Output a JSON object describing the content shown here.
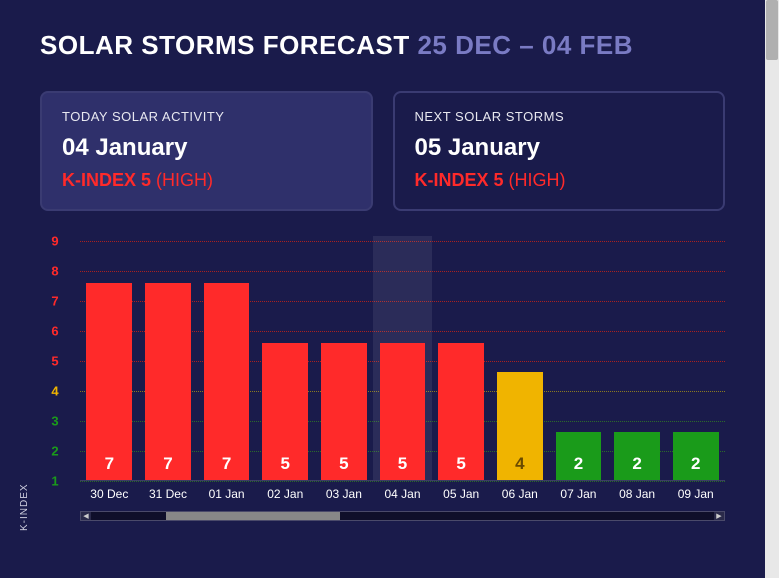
{
  "background_color": "#1a1b4b",
  "header": {
    "title_prefix": "SOLAR STORMS FORECAST ",
    "date_range": "25 DEC – 04 FEB",
    "title_color": "#ffffff",
    "range_color": "#7a7bc4",
    "fontsize": 26
  },
  "cards": {
    "today": {
      "label": "TODAY SOLAR ACTIVITY",
      "date": "04 January",
      "kindex_text": "K-INDEX 5 ",
      "level_text": "(HIGH)",
      "kindex_color": "#ff2a2a",
      "bg": "#2f306b",
      "border": "#3a3b72"
    },
    "next": {
      "label": "NEXT SOLAR STORMS",
      "date": "05 January",
      "kindex_text": "K-INDEX 5 ",
      "level_text": "(HIGH)",
      "kindex_color": "#ff2a2a",
      "bg": "transparent",
      "border": "#3a3b72"
    }
  },
  "chart": {
    "type": "bar",
    "y_axis_title": "K-INDEX",
    "ylim": [
      1,
      9
    ],
    "y_ticks": [
      {
        "v": 9,
        "color": "#ff2a2a",
        "grid": "#aa2020"
      },
      {
        "v": 8,
        "color": "#ff2a2a",
        "grid": "#aa2020"
      },
      {
        "v": 7,
        "color": "#ff2a2a",
        "grid": "#aa2020"
      },
      {
        "v": 6,
        "color": "#ff2a2a",
        "grid": "#aa2020"
      },
      {
        "v": 5,
        "color": "#ff2a2a",
        "grid": "#aa2020"
      },
      {
        "v": 4,
        "color": "#f0b400",
        "grid": "#8a7a20"
      },
      {
        "v": 3,
        "color": "#1a9b1a",
        "grid": "#2a6a2a"
      },
      {
        "v": 2,
        "color": "#1a9b1a",
        "grid": "#2a6a2a"
      },
      {
        "v": 1,
        "color": "#1a9b1a",
        "grid": "#2a6a2a"
      }
    ],
    "categories": [
      "30 Dec",
      "31 Dec",
      "01 Jan",
      "02 Jan",
      "03 Jan",
      "04 Jan",
      "05 Jan",
      "06 Jan",
      "07 Jan",
      "08 Jan",
      "09 Jan"
    ],
    "values": [
      7,
      7,
      7,
      5,
      5,
      5,
      5,
      4,
      2,
      2,
      2
    ],
    "bar_colors": [
      "#ff2a2a",
      "#ff2a2a",
      "#ff2a2a",
      "#ff2a2a",
      "#ff2a2a",
      "#ff2a2a",
      "#ff2a2a",
      "#f0b400",
      "#1a9b1a",
      "#1a9b1a",
      "#1a9b1a"
    ],
    "label_colors": [
      "#ffffff",
      "#ffffff",
      "#ffffff",
      "#ffffff",
      "#ffffff",
      "#ffffff",
      "#ffffff",
      "#6a4a00",
      "#ffffff",
      "#ffffff",
      "#ffffff"
    ],
    "highlight_index": 5,
    "bar_width": 0.78,
    "x_label_color": "#ffffff",
    "x_label_fontsize": 12,
    "bar_label_fontsize": 17
  }
}
